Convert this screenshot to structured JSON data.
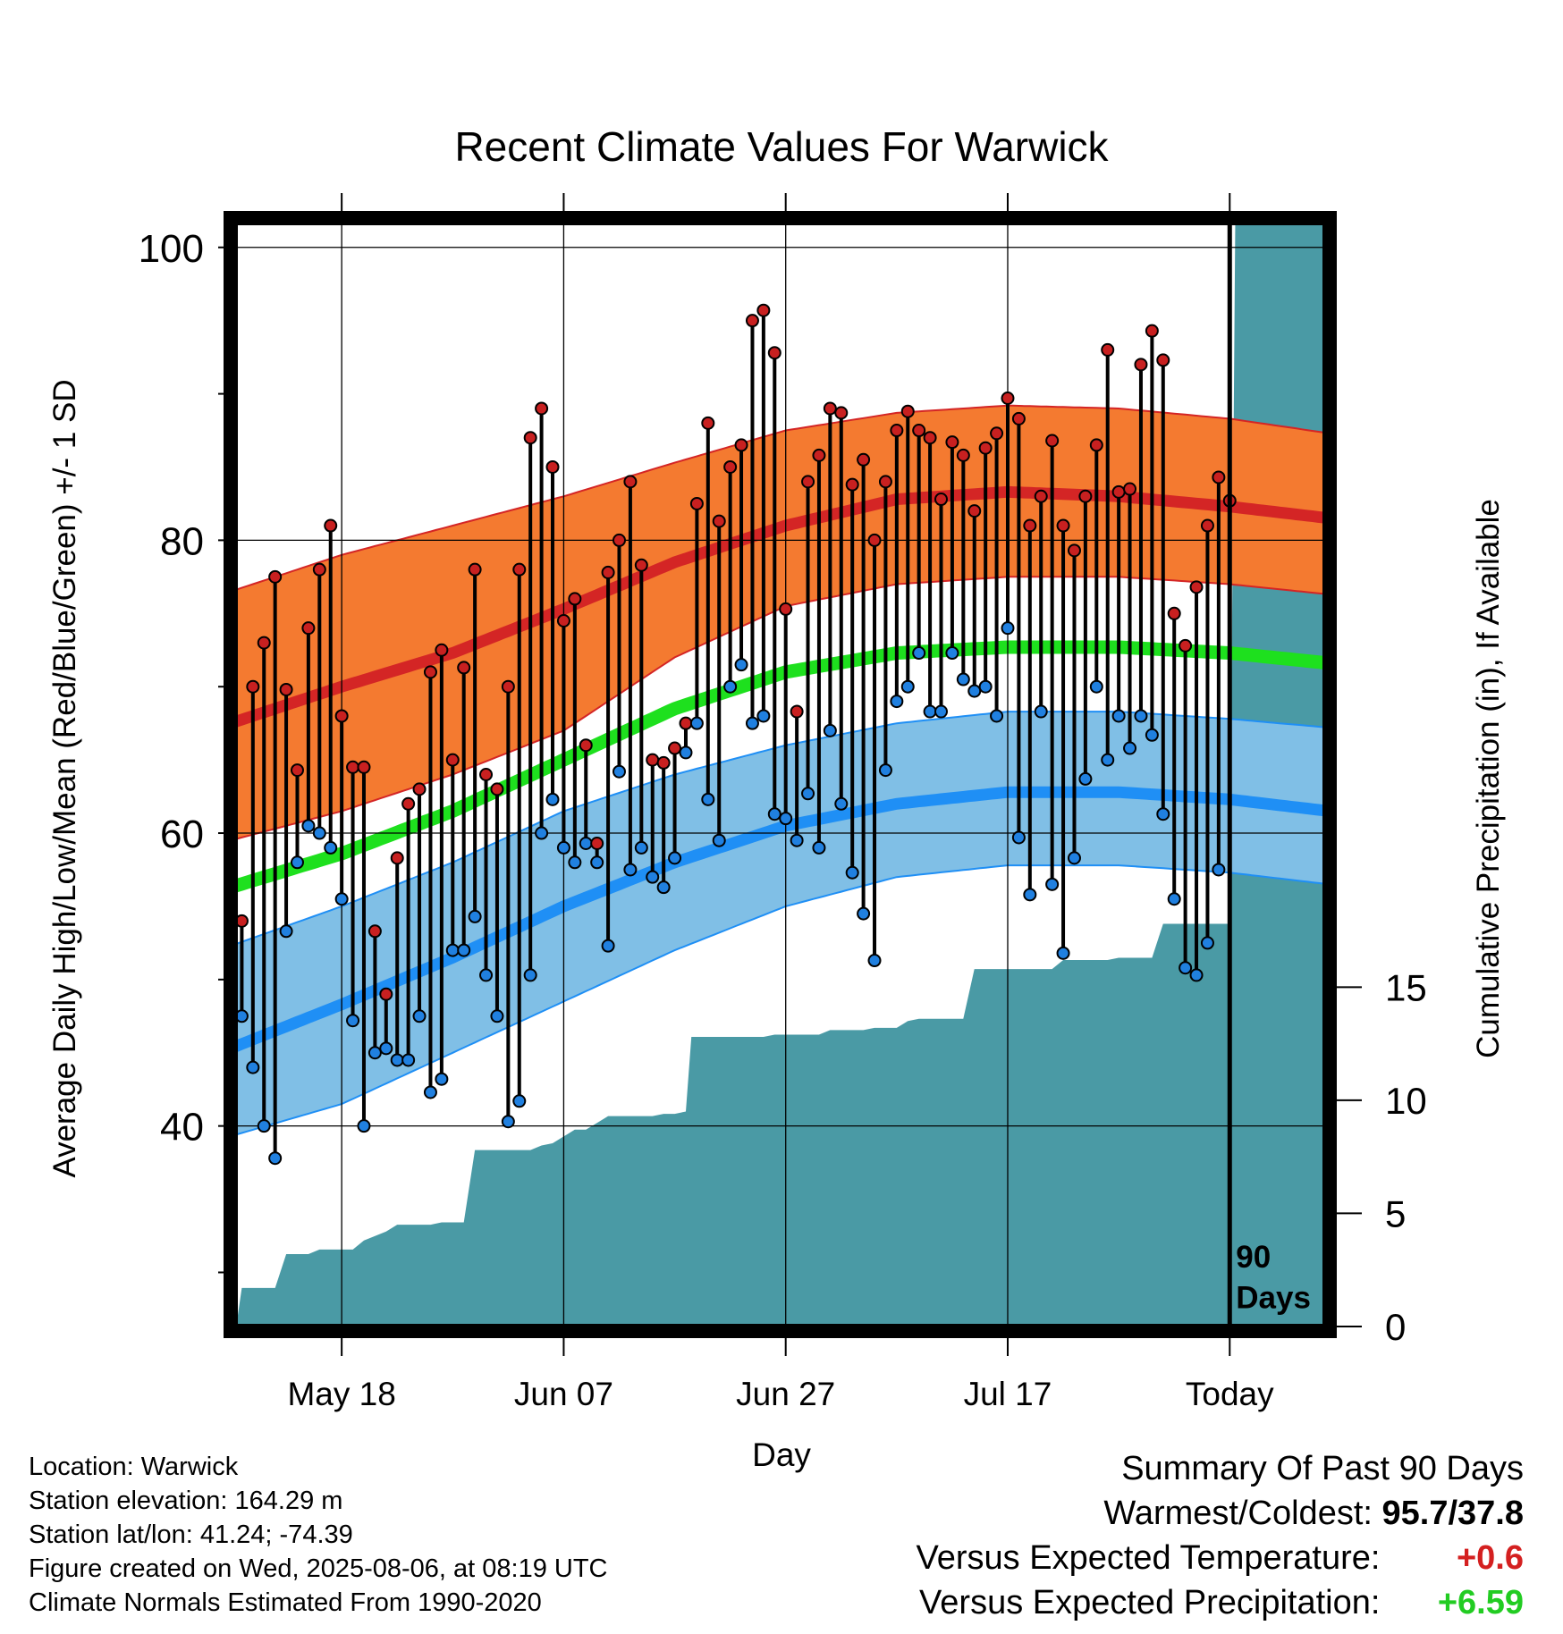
{
  "chart_data": {
    "type": "line",
    "title": "Recent Climate Values For Warwick",
    "xlabel": "Day",
    "ylabel": "Average Daily High/Low/Mean (Red/Blue/Green) +/- 1 SD",
    "y2label": "Cumulative Precipitation (in), If Available",
    "ylim": [
      26,
      102
    ],
    "y2lim": [
      -0.2,
      49
    ],
    "x_range_days": [
      0,
      99
    ],
    "yticks": [
      40,
      60,
      80,
      100
    ],
    "y2ticks": [
      0,
      5,
      10,
      15
    ],
    "xticks": [
      {
        "day": 10,
        "label": "May 18"
      },
      {
        "day": 30,
        "label": "Jun 07"
      },
      {
        "day": 50,
        "label": "Jun 27"
      },
      {
        "day": 70,
        "label": "Jul 17"
      },
      {
        "day": 90,
        "label": "Today"
      }
    ],
    "today_day": 90,
    "today_annotation": [
      "90",
      "Days"
    ],
    "grid": true,
    "normals": {
      "mean_high": [
        [
          0,
          67.5
        ],
        [
          10,
          70
        ],
        [
          20,
          72.3
        ],
        [
          30,
          75.3
        ],
        [
          40,
          78.5
        ],
        [
          50,
          81
        ],
        [
          60,
          82.8
        ],
        [
          70,
          83.3
        ],
        [
          80,
          83
        ],
        [
          90,
          82.3
        ],
        [
          99,
          81.5
        ]
      ],
      "high_plus_sd": [
        [
          0,
          76.5
        ],
        [
          10,
          79
        ],
        [
          20,
          81
        ],
        [
          30,
          83
        ],
        [
          40,
          85.3
        ],
        [
          50,
          87.5
        ],
        [
          60,
          88.7
        ],
        [
          70,
          89.2
        ],
        [
          80,
          89
        ],
        [
          90,
          88.3
        ],
        [
          99,
          87.3
        ]
      ],
      "high_minus_sd": [
        [
          0,
          59.5
        ],
        [
          10,
          61.5
        ],
        [
          20,
          64
        ],
        [
          30,
          67
        ],
        [
          40,
          72
        ],
        [
          50,
          75.5
        ],
        [
          60,
          77
        ],
        [
          70,
          77.5
        ],
        [
          80,
          77.5
        ],
        [
          90,
          77
        ],
        [
          99,
          76.3
        ]
      ],
      "mean": [
        [
          0,
          56.3
        ],
        [
          10,
          58.6
        ],
        [
          20,
          61.5
        ],
        [
          30,
          65
        ],
        [
          40,
          68.5
        ],
        [
          50,
          71
        ],
        [
          60,
          72.3
        ],
        [
          70,
          72.7
        ],
        [
          80,
          72.7
        ],
        [
          90,
          72.3
        ],
        [
          99,
          71.6
        ]
      ],
      "mean_low": [
        [
          0,
          45.3
        ],
        [
          10,
          48.3
        ],
        [
          20,
          51.5
        ],
        [
          30,
          55
        ],
        [
          40,
          58
        ],
        [
          50,
          60.5
        ],
        [
          60,
          62
        ],
        [
          70,
          62.8
        ],
        [
          80,
          62.8
        ],
        [
          90,
          62.3
        ],
        [
          99,
          61.5
        ]
      ],
      "low_plus_sd": [
        [
          0,
          52.3
        ],
        [
          10,
          55
        ],
        [
          20,
          58
        ],
        [
          30,
          61.5
        ],
        [
          40,
          64
        ],
        [
          50,
          66
        ],
        [
          60,
          67.5
        ],
        [
          70,
          68.3
        ],
        [
          80,
          68.3
        ],
        [
          90,
          67.8
        ],
        [
          99,
          67.2
        ]
      ],
      "low_minus_sd": [
        [
          0,
          39.3
        ],
        [
          10,
          41.5
        ],
        [
          20,
          45
        ],
        [
          30,
          48.5
        ],
        [
          40,
          52
        ],
        [
          50,
          55
        ],
        [
          60,
          57
        ],
        [
          70,
          57.8
        ],
        [
          80,
          57.8
        ],
        [
          90,
          57.3
        ],
        [
          99,
          56.5
        ]
      ]
    },
    "daily_high": [
      74.5,
      54,
      70,
      73,
      77.5,
      69.8,
      64.3,
      74,
      78,
      81,
      68,
      64.5,
      64.5,
      53.3,
      49,
      58.3,
      62,
      63,
      71,
      72.5,
      65,
      71.3,
      78,
      64,
      63,
      70,
      78,
      87,
      89,
      85,
      74.5,
      76,
      66,
      59.3,
      77.8,
      80,
      84,
      78.3,
      65,
      64.8,
      65.8,
      67.5,
      82.5,
      88,
      81.3,
      85,
      86.5,
      95,
      95.7,
      92.8,
      75.3,
      68.3,
      84,
      85.8,
      89,
      88.7,
      83.8,
      85.5,
      80,
      84,
      87.5,
      88.8,
      87.5,
      87,
      82.8,
      86.7,
      85.8,
      82,
      86.3,
      87.3,
      89.7,
      88.3,
      81,
      83,
      86.8,
      81,
      79.3,
      83,
      86.5,
      93,
      83.3,
      83.5,
      92,
      94.3,
      92.3,
      75,
      72.8,
      76.8,
      81,
      84.3,
      82.7
    ],
    "daily_low": [
      49,
      47.5,
      44,
      40,
      37.8,
      53.3,
      58,
      60.5,
      60,
      59,
      55.5,
      47.2,
      40,
      45,
      45.3,
      44.5,
      44.5,
      47.5,
      42.3,
      43.2,
      52,
      52,
      54.3,
      50.3,
      47.5,
      40.3,
      41.7,
      50.3,
      60,
      62.3,
      59,
      58,
      59.3,
      58,
      52.3,
      64.2,
      57.5,
      59,
      57,
      56.3,
      58.3,
      65.5,
      67.5,
      62.3,
      59.5,
      70,
      71.5,
      67.5,
      68,
      61.3,
      61,
      59.5,
      62.7,
      59,
      67,
      62,
      57.3,
      54.5,
      51.3,
      64.3,
      69,
      70,
      72.3,
      68.3,
      68.3,
      72.3,
      70.5,
      69.7,
      70,
      68,
      74,
      59.7,
      55.8,
      68.3,
      56.5,
      51.8,
      58.3,
      63.7,
      70,
      65,
      68,
      65.8,
      68,
      66.7,
      61.3,
      55.5,
      50.8,
      50.3,
      52.5,
      57.5
    ],
    "cumulative_precip": [
      [
        0.5,
        0
      ],
      [
        1,
        1.7
      ],
      [
        4,
        1.7
      ],
      [
        5,
        3.2
      ],
      [
        7,
        3.2
      ],
      [
        8,
        3.4
      ],
      [
        11,
        3.4
      ],
      [
        12,
        3.8
      ],
      [
        14,
        4.2
      ],
      [
        15,
        4.5
      ],
      [
        18,
        4.5
      ],
      [
        19,
        4.6
      ],
      [
        21,
        4.6
      ],
      [
        22,
        7.8
      ],
      [
        27,
        7.8
      ],
      [
        28,
        8.0
      ],
      [
        29,
        8.1
      ],
      [
        30,
        8.4
      ],
      [
        31,
        8.7
      ],
      [
        32,
        8.7
      ],
      [
        33,
        9.0
      ],
      [
        34,
        9.3
      ],
      [
        38,
        9.3
      ],
      [
        39,
        9.4
      ],
      [
        40,
        9.4
      ],
      [
        41,
        9.5
      ],
      [
        41.5,
        12.8
      ],
      [
        48,
        12.8
      ],
      [
        49,
        12.9
      ],
      [
        53,
        12.9
      ],
      [
        54,
        13.1
      ],
      [
        57,
        13.1
      ],
      [
        58,
        13.2
      ],
      [
        60,
        13.2
      ],
      [
        61,
        13.5
      ],
      [
        62,
        13.6
      ],
      [
        66,
        13.6
      ],
      [
        67,
        15.8
      ],
      [
        74,
        15.8
      ],
      [
        75,
        16.2
      ],
      [
        79,
        16.2
      ],
      [
        80,
        16.3
      ],
      [
        83,
        16.3
      ],
      [
        84,
        17.8
      ],
      [
        90,
        17.8
      ],
      [
        90.5,
        49
      ],
      [
        99,
        49
      ]
    ],
    "colors": {
      "high_band": "#f47a30",
      "mean_high_line": "#d42525",
      "mean_line": "#1ee01e",
      "low_band": "#80bfe6",
      "mean_low_line": "#1f8ff5",
      "precip": "#4a9aa5",
      "high_point": "#c82020",
      "low_point": "#2080e0"
    }
  },
  "info": {
    "location": "Location: Warwick",
    "elevation": "Station elevation: 164.29 m",
    "latlon": "Station lat/lon: 41.24; -74.39",
    "created": "Figure created on Wed, 2025-08-06, at 08:19 UTC",
    "normals": "Climate Normals Estimated From 1990-2020"
  },
  "summary": {
    "title": "Summary Of Past 90 Days",
    "warmest_label": "Warmest/Coldest:",
    "warmest_value": "95.7/37.8",
    "temp_label": "Versus Expected Temperature:",
    "temp_value": "+0.6",
    "temp_color": "#d42020",
    "precip_label": "Versus Expected Precipitation:",
    "precip_value": "+6.59",
    "precip_color": "#22cc22"
  }
}
